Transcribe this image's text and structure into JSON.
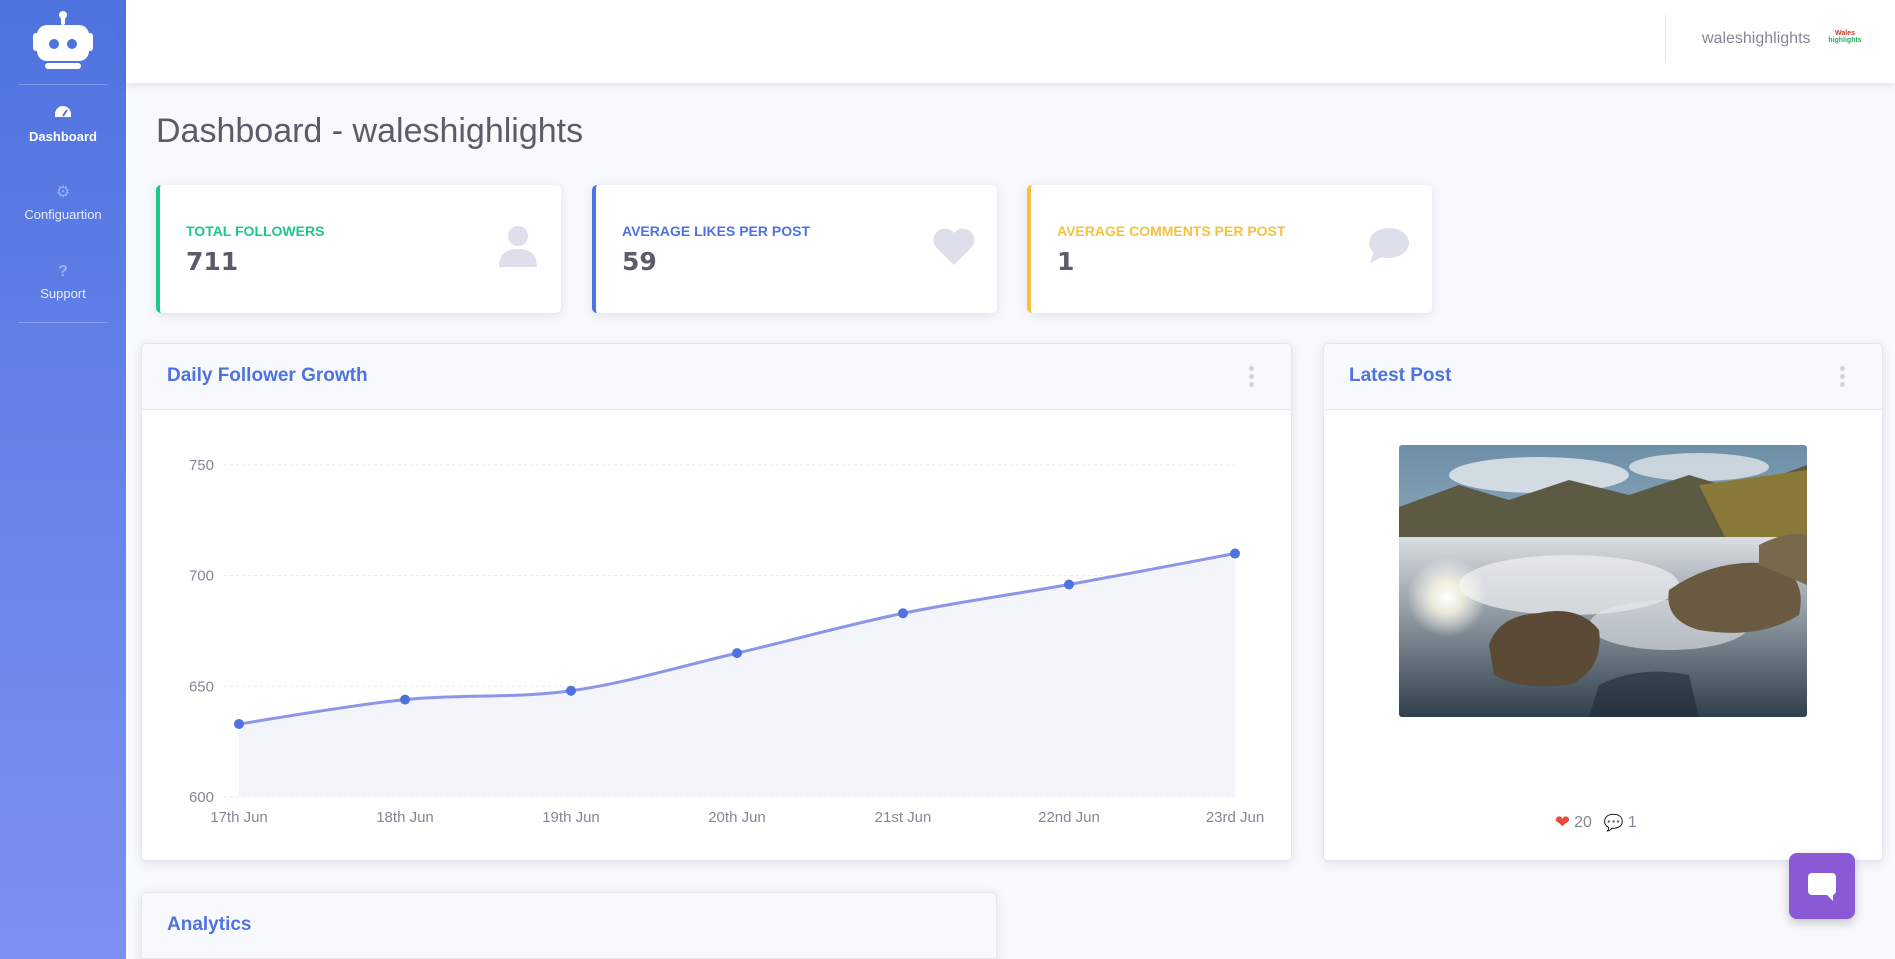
{
  "sidebar": {
    "brand_icon": "robot-icon",
    "items": [
      {
        "label": "Dashboard",
        "icon": "tachometer-icon",
        "active": true
      },
      {
        "label": "Configuartion",
        "icon": "gear-icon",
        "active": false
      },
      {
        "label": "Support",
        "icon": "question-icon",
        "active": false
      }
    ]
  },
  "topbar": {
    "username": "waleshighlights",
    "logo_text_line1": "Wales",
    "logo_text_line2": "highlights"
  },
  "page": {
    "title": "Dashboard - waleshighlights"
  },
  "stats": [
    {
      "label": "Total Followers",
      "value": "711",
      "icon": "user-icon",
      "color": "#1cc88a"
    },
    {
      "label": "Average Likes per post",
      "value": "59",
      "icon": "heart-icon",
      "color": "#4e73df"
    },
    {
      "label": "Average Comments per post",
      "value": "1",
      "icon": "comment-icon",
      "color": "#f6c23e"
    }
  ],
  "follower_chart": {
    "title": "Daily Follower Growth"
  },
  "chart_data": {
    "type": "line",
    "x": [
      "17th Jun",
      "18th Jun",
      "19th Jun",
      "20th Jun",
      "21st Jun",
      "22nd Jun",
      "23rd Jun"
    ],
    "values": [
      633,
      644,
      648,
      665,
      683,
      696,
      710
    ],
    "yticks": [
      "600",
      "650",
      "700",
      "750"
    ],
    "ylim": [
      600,
      750
    ],
    "grid": true,
    "line_color": "#8d95e8",
    "point_color": "#4e73df",
    "fill_color": "#f4f5fb"
  },
  "latest_post": {
    "title": "Latest Post",
    "likes": "20",
    "comments": "1",
    "image_alt": "lake-mountain-photo"
  },
  "analytics": {
    "title": "Analytics"
  },
  "chat": {
    "icon": "chat-bubble-icon",
    "color": "#8a5ad6"
  }
}
